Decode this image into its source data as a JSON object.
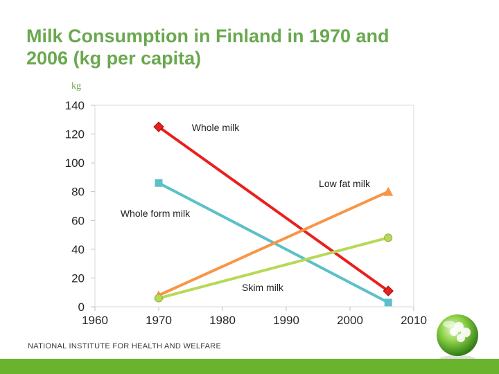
{
  "slide": {
    "title_line1": "Milk Consumption in Finland in 1970 and",
    "title_line2": "2006 (kg per capita)",
    "footer": "NATIONAL INSTITUTE FOR HEALTH AND WELFARE"
  },
  "colors": {
    "title": "#6aa84f",
    "axis_text": "#262626",
    "grid": "#d9d9d9",
    "unit_label": "#6aa84f",
    "bar": "#6ab42d"
  },
  "chart_data": {
    "type": "line",
    "title": "Milk Consumption in Finland in 1970 and 2006 (kg per capita)",
    "ylabel": "kg",
    "xlabel": "",
    "xlim": [
      1960,
      2010
    ],
    "ylim": [
      0,
      140
    ],
    "xticks": [
      1960,
      1970,
      1980,
      1990,
      2000,
      2010
    ],
    "yticks": [
      0,
      20,
      40,
      60,
      80,
      100,
      120,
      140
    ],
    "grid": false,
    "series": [
      {
        "name": "Whole milk",
        "color": "#e8201e",
        "marker": "diamond",
        "x": [
          1970,
          2006
        ],
        "values": [
          125,
          11
        ]
      },
      {
        "name": "Whole form milk",
        "color": "#5bc0c8",
        "marker": "square",
        "x": [
          1970,
          2006
        ],
        "values": [
          86,
          3
        ]
      },
      {
        "name": "Low fat milk",
        "color": "#f79646",
        "marker": "triangle",
        "x": [
          1970,
          2006
        ],
        "values": [
          8,
          80
        ]
      },
      {
        "name": "Skim milk",
        "color": "#b6d957",
        "marker": "circle",
        "x": [
          1970,
          2006
        ],
        "values": [
          6,
          48
        ]
      }
    ]
  }
}
